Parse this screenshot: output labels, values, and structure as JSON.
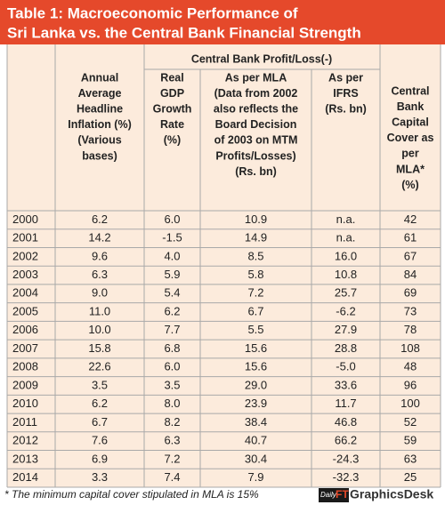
{
  "header": {
    "title": [
      "Table 1: Macroeconomic Performance of",
      "Sri Lanka vs. the Central Bank Financial Strength"
    ]
  },
  "table": {
    "group_header": "Central Bank Profit/Loss(-)",
    "columns": [
      [
        ""
      ],
      [
        "Annual",
        "Average",
        "Headline",
        "Inflation (%)",
        "(Various",
        "bases)"
      ],
      [
        "Real",
        "GDP",
        "Growth",
        "Rate",
        "(%)"
      ],
      [
        "As per MLA",
        "(Data from 2002",
        "also reflects the",
        "Board Decision",
        "of 2003 on MTM",
        "Profits/Losses)",
        "(Rs. bn)"
      ],
      [
        "As per",
        "IFRS",
        "(Rs. bn)"
      ],
      [
        "Central",
        "Bank",
        "Capital",
        "Cover as",
        "per",
        "MLA*",
        "(%)"
      ]
    ],
    "rows": [
      [
        "2000",
        "6.2",
        "6.0",
        "10.9",
        "n.a.",
        "42"
      ],
      [
        "2001",
        "14.2",
        "-1.5",
        "14.9",
        "n.a.",
        "61"
      ],
      [
        "2002",
        "9.6",
        "4.0",
        "8.5",
        "16.0",
        "67"
      ],
      [
        "2003",
        "6.3",
        "5.9",
        "5.8",
        "10.8",
        "84"
      ],
      [
        "2004",
        "9.0",
        "5.4",
        "7.2",
        "25.7",
        "69"
      ],
      [
        "2005",
        "11.0",
        "6.2",
        "6.7",
        "-6.2",
        "73"
      ],
      [
        "2006",
        "10.0",
        "7.7",
        "5.5",
        "27.9",
        "78"
      ],
      [
        "2007",
        "15.8",
        "6.8",
        "15.6",
        "28.8",
        "108"
      ],
      [
        "2008",
        "22.6",
        "6.0",
        "15.6",
        "-5.0",
        "48"
      ],
      [
        "2009",
        "3.5",
        "3.5",
        "29.0",
        "33.6",
        "96"
      ],
      [
        "2010",
        "6.2",
        "8.0",
        "23.9",
        "11.7",
        "100"
      ],
      [
        "2011",
        "6.7",
        "8.2",
        "38.4",
        "46.8",
        "52"
      ],
      [
        "2012",
        "7.6",
        "6.3",
        "40.7",
        "66.2",
        "59"
      ],
      [
        "2013",
        "6.9",
        "7.2",
        "30.4",
        "-24.3",
        "63"
      ],
      [
        "2014",
        "3.3",
        "7.4",
        "7.9",
        "-32.3",
        "25"
      ]
    ]
  },
  "footnote": "* The minimum capital cover stipulated in MLA is 15%",
  "logo": {
    "daily": "Daily",
    "ft": "FT",
    "text": "GraphicsDesk"
  }
}
